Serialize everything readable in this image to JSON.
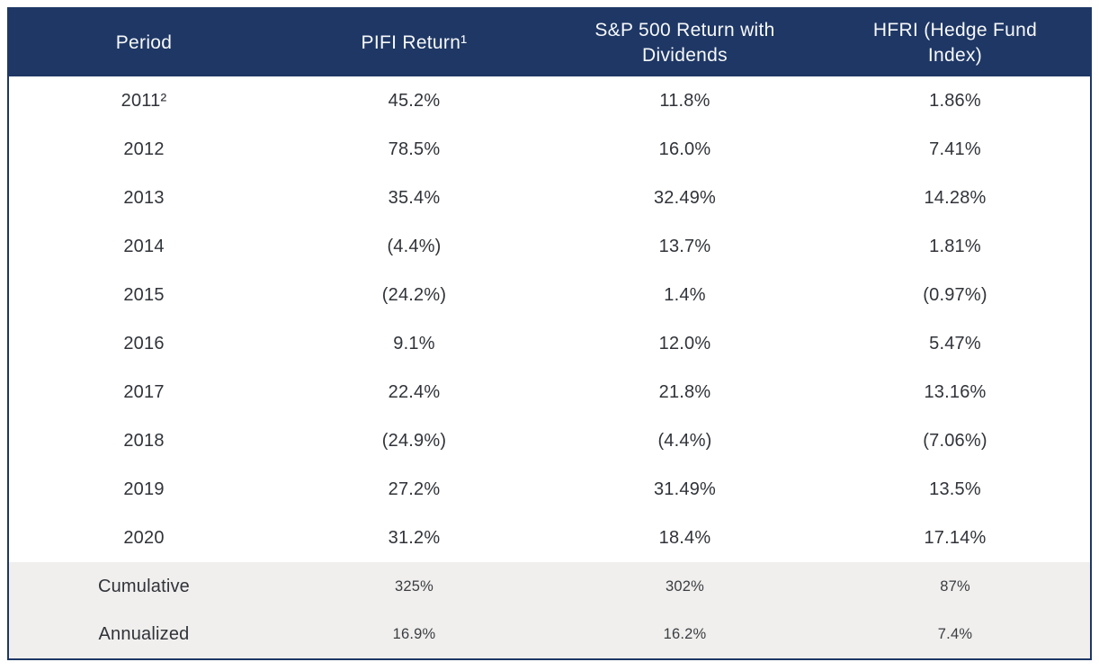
{
  "colors": {
    "header_bg": "#1e3765",
    "header_text": "#f7f8fa",
    "body_text": "#303339",
    "summary_row_bg": "#f0efed",
    "table_border": "#1e3765",
    "page_bg": "#ffffff"
  },
  "chart_data": {
    "type": "table",
    "columns": [
      "Period",
      "PIFI Return¹",
      "S&P 500 Return with Dividends",
      "HFRI (Hedge Fund Index)"
    ],
    "rows": [
      [
        "2011²",
        "45.2%",
        "11.8%",
        "1.86%"
      ],
      [
        "2012",
        "78.5%",
        "16.0%",
        "7.41%"
      ],
      [
        "2013",
        "35.4%",
        "32.49%",
        "14.28%"
      ],
      [
        "2014",
        "(4.4%)",
        "13.7%",
        "1.81%"
      ],
      [
        "2015",
        "(24.2%)",
        "1.4%",
        "(0.97%)"
      ],
      [
        "2016",
        "9.1%",
        "12.0%",
        "5.47%"
      ],
      [
        "2017",
        "22.4%",
        "21.8%",
        "13.16%"
      ],
      [
        "2018",
        "(24.9%)",
        "(4.4%)",
        "(7.06%)"
      ],
      [
        "2019",
        "27.2%",
        "31.49%",
        "13.5%"
      ],
      [
        "2020",
        "31.2%",
        "18.4%",
        "17.14%"
      ]
    ],
    "summary_rows": [
      [
        "Cumulative",
        "325%",
        "302%",
        "87%"
      ],
      [
        "Annualized",
        "16.9%",
        "16.2%",
        "7.4%"
      ]
    ],
    "layout": {
      "legend": "none",
      "grid": "off",
      "note": "static comparison table of annual returns"
    }
  }
}
